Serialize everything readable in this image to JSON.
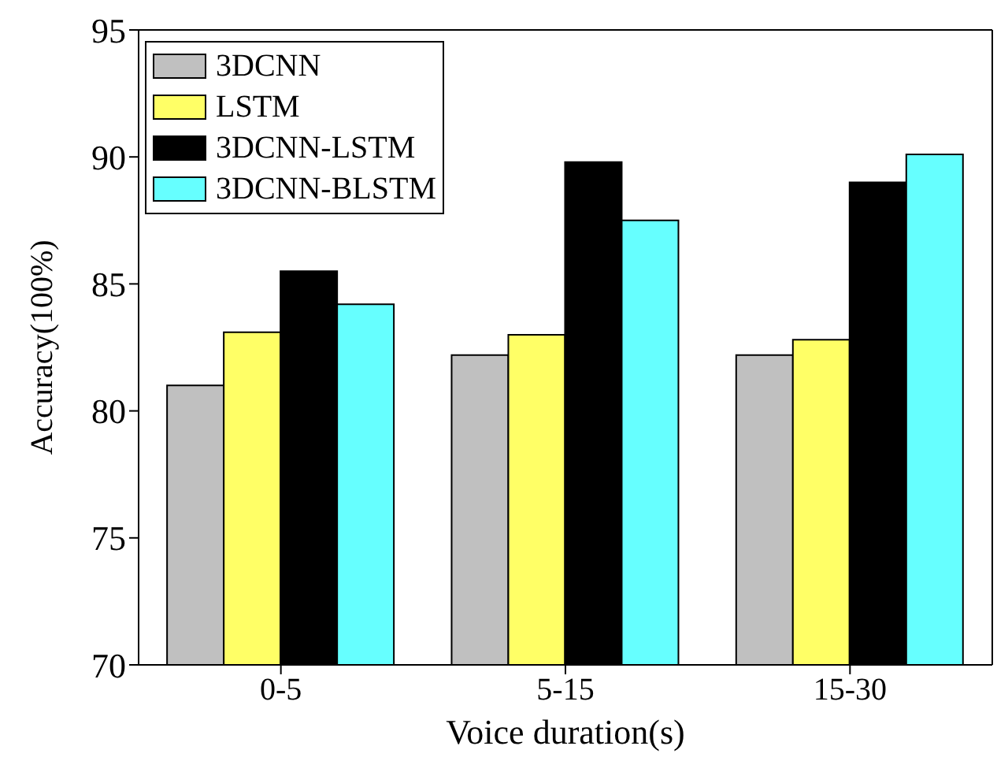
{
  "chart_data": {
    "type": "bar",
    "xlabel": "Voice duration(s)",
    "ylabel": "Accuracy(100%)",
    "categories": [
      "0-5",
      "5-15",
      "15-30"
    ],
    "series": [
      {
        "name": "3DCNN",
        "color": "#c0c0c0",
        "values": [
          81.0,
          82.2,
          82.2
        ]
      },
      {
        "name": "LSTM",
        "color": "#ffff66",
        "values": [
          83.1,
          83.0,
          82.8
        ]
      },
      {
        "name": "3DCNN-LSTM",
        "color": "#000000",
        "values": [
          85.5,
          89.8,
          89.0
        ]
      },
      {
        "name": "3DCNN-BLSTM",
        "color": "#66ffff",
        "values": [
          84.2,
          87.5,
          90.1
        ]
      }
    ],
    "ylim": [
      70,
      95
    ],
    "yticks": [
      70,
      75,
      80,
      85,
      90,
      95
    ],
    "grid": false,
    "legend": "top left"
  }
}
